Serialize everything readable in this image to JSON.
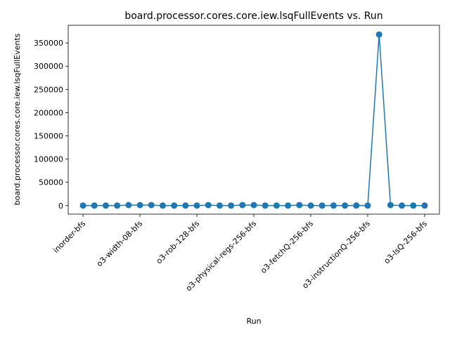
{
  "chart_data": {
    "type": "line",
    "title": "board.processor.cores.core.iew.lsqFullEvents vs. Run",
    "xlabel": "Run",
    "ylabel": "board.processor.cores.core.iew.lsqFullEvents",
    "x_tick_labels": [
      {
        "index": 0,
        "label": "inorder-bfs"
      },
      {
        "index": 5,
        "label": "o3-width-08-bfs"
      },
      {
        "index": 10,
        "label": "o3-rob-128-bfs"
      },
      {
        "index": 15,
        "label": "o3-physical-regs-256-bfs"
      },
      {
        "index": 20,
        "label": "o3-fetchQ-256-bfs"
      },
      {
        "index": 25,
        "label": "o3-instructionQ-256-bfs"
      },
      {
        "index": 30,
        "label": "o3-lsQ-256-bfs"
      }
    ],
    "y_ticks": [
      0,
      50000,
      100000,
      150000,
      200000,
      250000,
      300000,
      350000
    ],
    "ylim": [
      -18500,
      388000
    ],
    "xlim": [
      -1.3,
      31.3
    ],
    "series": [
      {
        "values": [
          0,
          0,
          0,
          0,
          1000,
          1000,
          1000,
          0,
          0,
          0,
          0,
          1000,
          0,
          0,
          1000,
          1000,
          0,
          0,
          0,
          1000,
          0,
          0,
          0,
          0,
          0,
          0,
          368000,
          1000,
          0,
          0,
          0
        ]
      }
    ],
    "color": "#1f77b4",
    "grid": false
  }
}
